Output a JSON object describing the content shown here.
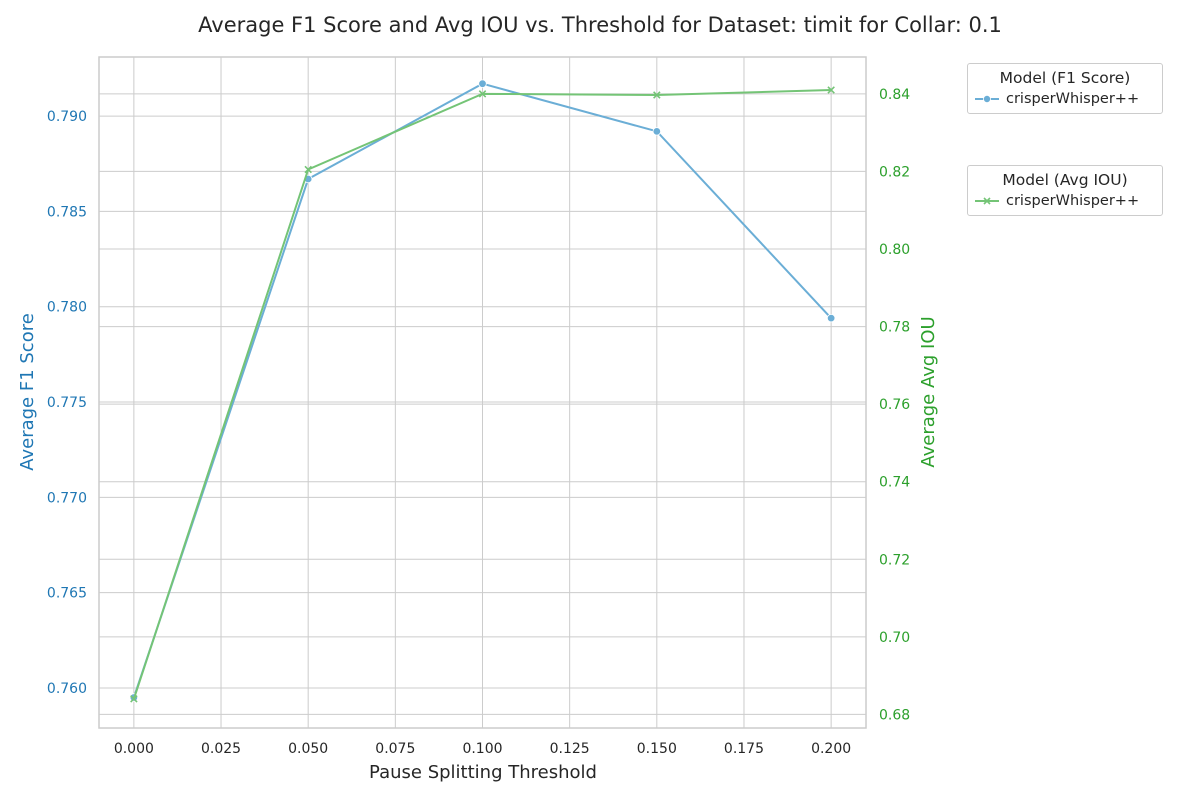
{
  "chart_data": {
    "type": "line",
    "title": "Average F1 Score and Avg IOU vs. Threshold for Dataset: timit for Collar: 0.1",
    "xlabel": "Pause Splitting Threshold",
    "ylabel_left": "Average F1 Score",
    "ylabel_right": "Average Avg IOU",
    "x": [
      0.0,
      0.05,
      0.1,
      0.15,
      0.2
    ],
    "xlim": [
      -0.01,
      0.21
    ],
    "xticks": [
      "0.000",
      "0.025",
      "0.050",
      "0.075",
      "0.100",
      "0.125",
      "0.150",
      "0.175",
      "0.200"
    ],
    "ylim_left": [
      0.7579,
      0.7931
    ],
    "yticks_left": [
      "0.760",
      "0.765",
      "0.770",
      "0.775",
      "0.780",
      "0.785",
      "0.790"
    ],
    "ylim_right": [
      0.6765,
      0.8495
    ],
    "yticks_right": [
      "0.68",
      "0.70",
      "0.72",
      "0.74",
      "0.76",
      "0.78",
      "0.80",
      "0.82",
      "0.84"
    ],
    "grid": true,
    "series": [
      {
        "name": "crisperWhisper++",
        "axis": "left",
        "marker": "circle",
        "color": "#6baed6",
        "values": [
          0.7595,
          0.7867,
          0.7917,
          0.7892,
          0.7794
        ]
      },
      {
        "name": "crisperWhisper++",
        "axis": "right",
        "marker": "x",
        "color": "#74c476",
        "values": [
          0.684,
          0.8205,
          0.84,
          0.8397,
          0.841
        ]
      }
    ],
    "legends": [
      {
        "title": "Model (F1 Score)",
        "entries": [
          "crisperWhisper++"
        ],
        "placement": "outside upper right"
      },
      {
        "title": "Model (Avg IOU)",
        "entries": [
          "crisperWhisper++"
        ],
        "placement": "outside right"
      }
    ]
  },
  "colors": {
    "left_axis": "#1f77b4",
    "right_axis": "#2ca02c",
    "text": "#262626",
    "grid": "#cccccc"
  }
}
